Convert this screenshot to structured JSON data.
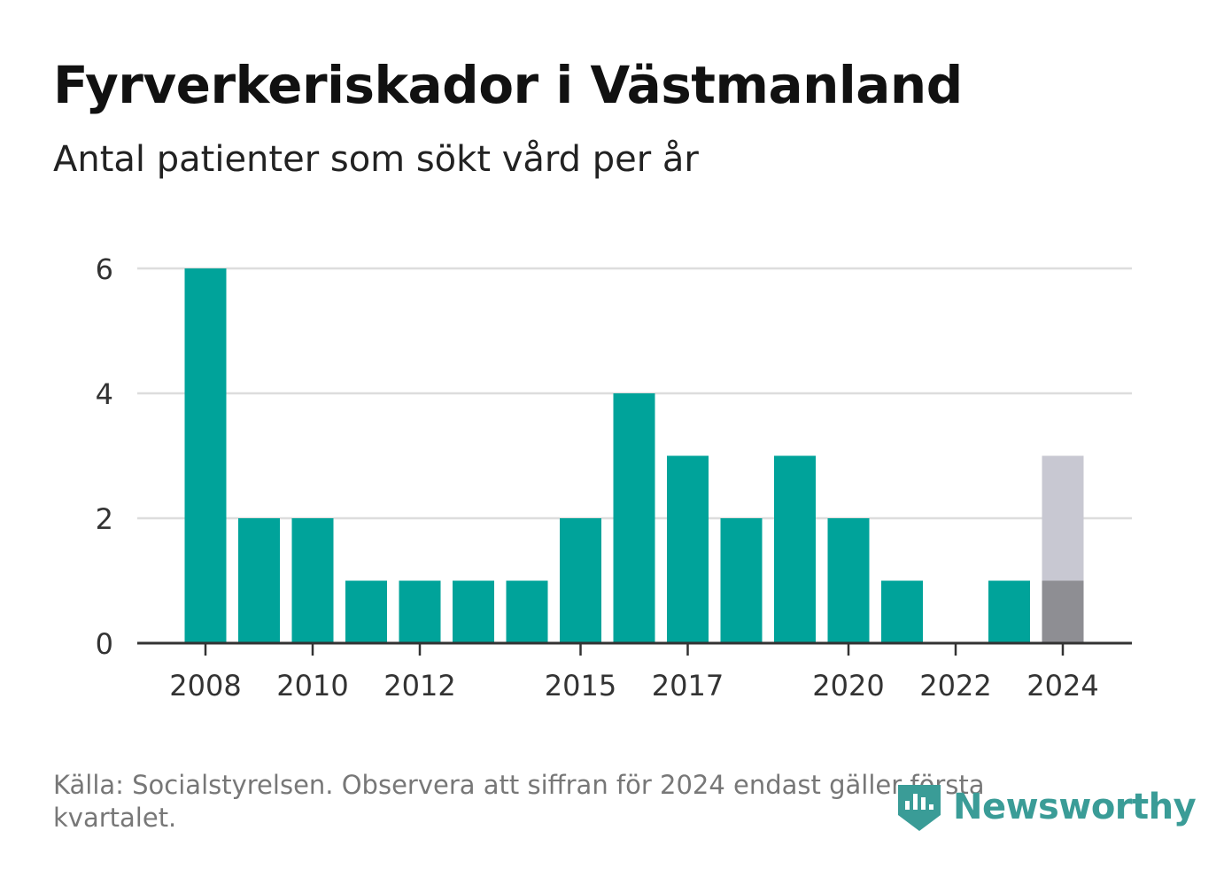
{
  "title": "Fyrverkeriskador i Västmanland",
  "subtitle": "Antal patienter som sökt vård per år",
  "footer": {
    "source": "Källa: Socialstyrelsen. Observera att siffran för 2024 endast gäller första kvartalet."
  },
  "logo": {
    "text": "Newsworthy",
    "icon": "newsworthy-logo-icon"
  },
  "colors": {
    "bar": "#00a39a",
    "highlight_partial": "#8e8e93",
    "highlight_full": "#c8c8d2",
    "grid": "#dddddd",
    "axis": "#333333"
  },
  "chart_data": {
    "type": "bar",
    "x": [
      2008,
      2009,
      2010,
      2011,
      2012,
      2013,
      2014,
      2015,
      2016,
      2017,
      2018,
      2019,
      2020,
      2021,
      2022,
      2023,
      2024
    ],
    "values": [
      6,
      2,
      2,
      1,
      1,
      1,
      1,
      2,
      4,
      3,
      2,
      3,
      2,
      1,
      0,
      1,
      1
    ],
    "highlight": {
      "x": 2024,
      "value": 1,
      "extended_value": 3
    },
    "xticks": [
      "2008",
      "2010",
      "2012",
      "2015",
      "2017",
      "2020",
      "2022",
      "2024"
    ],
    "yticks": [
      "0",
      "2",
      "4",
      "6"
    ],
    "ylim": [
      0,
      6
    ],
    "grid": true
  }
}
